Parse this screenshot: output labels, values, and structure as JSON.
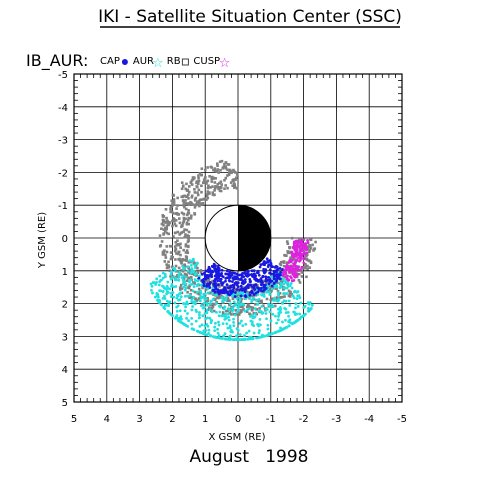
{
  "chart_data": {
    "type": "scatter",
    "title": "IKI - Satellite Situation Center (SSC)",
    "subtitle": "August   1998",
    "panel_label": "IB_AUR:",
    "xlabel": "X GSM (RE)",
    "ylabel": "Y GSM (RE)",
    "xlim": [
      5,
      -5
    ],
    "ylim": [
      -5,
      5
    ],
    "x_ticks": [
      "5",
      "4",
      "3",
      "2",
      "1",
      "0",
      "-1",
      "-2",
      "-3",
      "-4",
      "-5"
    ],
    "y_ticks": [
      "-5",
      "-4",
      "-3",
      "-2",
      "-1",
      "0",
      "1",
      "2",
      "3",
      "4",
      "5"
    ],
    "grid": true,
    "legend": [
      {
        "name": "CAP",
        "marker": "filled-circle",
        "color": "#1818e0"
      },
      {
        "name": "AUR",
        "marker": "star",
        "color": "#20e0e0"
      },
      {
        "name": "RB",
        "marker": "square",
        "color": "#808080"
      },
      {
        "name": "CUSP",
        "marker": "star",
        "color": "#e020e0"
      }
    ],
    "earth": {
      "center": [
        0,
        0
      ],
      "radius": 1,
      "night_side": "negative-x"
    },
    "regions": [
      {
        "name": "RB",
        "color": "#808080",
        "r_min": 1.5,
        "r_max": 2.4,
        "angle_from_deg": -90,
        "angle_to_deg": 180
      },
      {
        "name": "AUR",
        "color": "#20e0e0",
        "r_min": 1.4,
        "r_max": 3.1,
        "angle_from_deg": 25,
        "angle_to_deg": 140
      },
      {
        "name": "CAP",
        "color": "#1818e0",
        "r_min": 1.05,
        "r_max": 1.8,
        "angle_from_deg": 45,
        "angle_to_deg": 145
      },
      {
        "name": "CUSP",
        "color": "#e020e0",
        "r_min": 1.7,
        "r_max": 2.15,
        "angle_from_deg": 140,
        "angle_to_deg": 178
      }
    ]
  }
}
